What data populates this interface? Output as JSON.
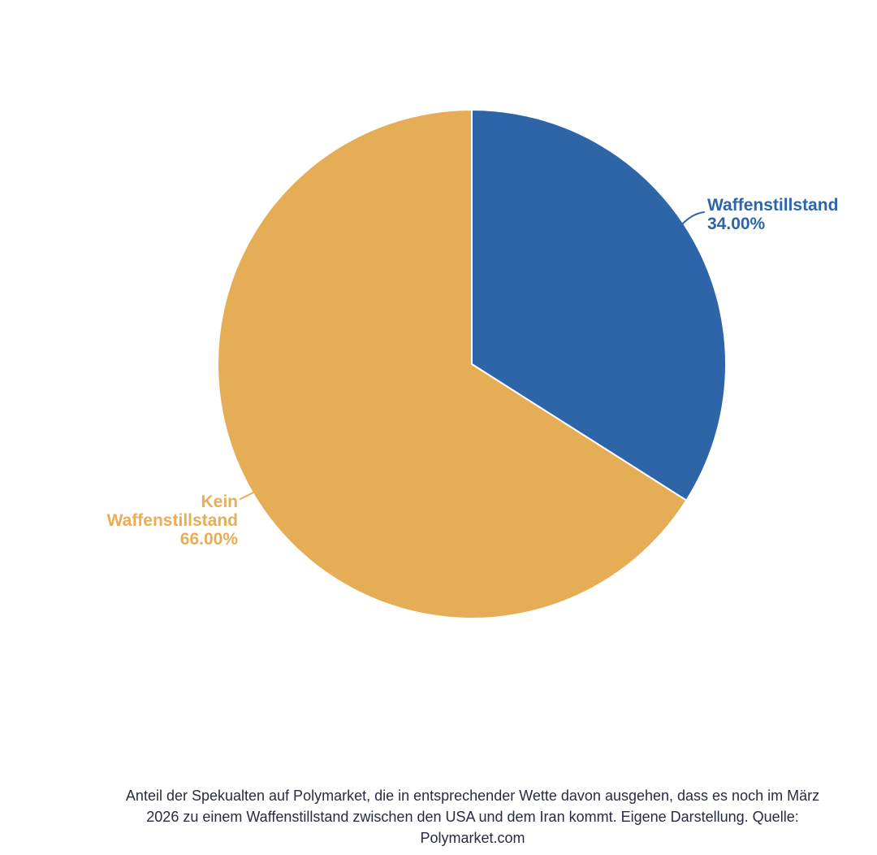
{
  "page": {
    "background": "#ffffff"
  },
  "chart_data": {
    "type": "pie",
    "title": "",
    "start_angle": "12-oclock",
    "direction": "clockwise",
    "legend_position": "none",
    "label_style": "outside-with-leader-lines",
    "slice_border_color": "#ffffff",
    "slices": [
      {
        "id": "waffenstillstand",
        "label": "Waffenstillstand",
        "value": 34.0,
        "pct_label": "34.00%",
        "color": "#2d65a8"
      },
      {
        "id": "kein-waffenstillstand",
        "label": "Kein Waffenstillstand",
        "value": 66.0,
        "pct_label": "66.00%",
        "color": "#e6ad57"
      }
    ]
  },
  "caption": {
    "color": "#272c41",
    "lines": [
      "Anteil der Spekualten auf Polymarket, die in entsprechender Wette davon ausgehen, dass es noch im März",
      "2026 zu einem Waffenstillstand zwischen den USA und dem Iran kommt. Eigene Darstellung. Quelle:",
      "Polymarket.com"
    ]
  }
}
